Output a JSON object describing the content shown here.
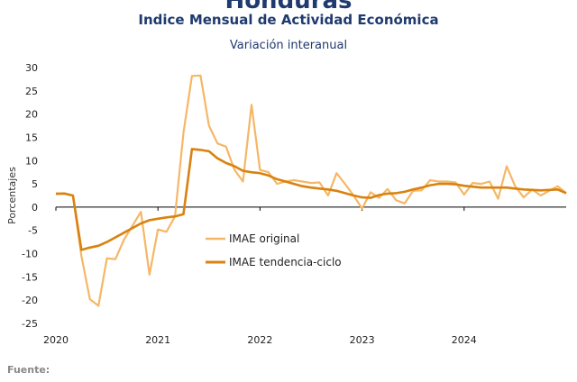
{
  "header": {
    "title": "Honduras",
    "subtitle": "Indice Mensual de  Actividad Económica",
    "subsubtitle": "Variación interanual"
  },
  "footer": {
    "text": "Fuente:"
  },
  "colors": {
    "original": "#f5b766",
    "trend": "#d9820f",
    "axis": "#000000"
  },
  "chart_data": {
    "type": "line",
    "ylabel": "Porcentajes",
    "ylim": [
      -25,
      30
    ],
    "yticks": [
      30,
      25,
      20,
      15,
      10,
      5,
      0,
      -5,
      -10,
      -15,
      -20,
      -25
    ],
    "xticks": [
      "2020",
      "2021",
      "2022",
      "2023",
      "2024"
    ],
    "legend": "center-left",
    "series": [
      {
        "name": "IMAE original",
        "values": [
          2.8,
          3.0,
          2.5,
          -10.5,
          -19.8,
          -21.2,
          -11.0,
          -11.2,
          -7.0,
          -4.0,
          -1.0,
          -14.5,
          -4.8,
          -5.3,
          -2.0,
          16.0,
          28.2,
          28.3,
          17.5,
          13.7,
          13.0,
          8.0,
          5.5,
          22.0,
          8.0,
          7.5,
          5.0,
          5.5,
          5.8,
          5.5,
          5.2,
          5.3,
          2.5,
          7.3,
          5.0,
          2.5,
          -0.3,
          3.2,
          2.0,
          3.9,
          1.5,
          0.8,
          3.5,
          3.6,
          5.8,
          5.5,
          5.5,
          5.3,
          2.7,
          5.2,
          5.0,
          5.5,
          1.8,
          8.8,
          4.5,
          2.1,
          3.8,
          2.5,
          3.5,
          4.5,
          3.0
        ]
      },
      {
        "name": "IMAE tendencia-ciclo",
        "values": [
          2.9,
          2.9,
          2.5,
          -9.2,
          -8.7,
          -8.3,
          -7.5,
          -6.5,
          -5.5,
          -4.5,
          -3.5,
          -2.8,
          -2.5,
          -2.2,
          -2.0,
          -1.5,
          12.5,
          12.3,
          12.0,
          10.5,
          9.5,
          8.8,
          7.8,
          7.5,
          7.3,
          6.8,
          6.0,
          5.5,
          5.0,
          4.5,
          4.2,
          4.0,
          3.8,
          3.5,
          3.0,
          2.5,
          2.1,
          2.0,
          2.6,
          2.9,
          3.0,
          3.3,
          3.8,
          4.2,
          4.7,
          5.0,
          5.0,
          4.9,
          4.6,
          4.4,
          4.2,
          4.2,
          4.2,
          4.2,
          4.0,
          3.8,
          3.7,
          3.6,
          3.7,
          3.8,
          3.0
        ]
      }
    ]
  }
}
